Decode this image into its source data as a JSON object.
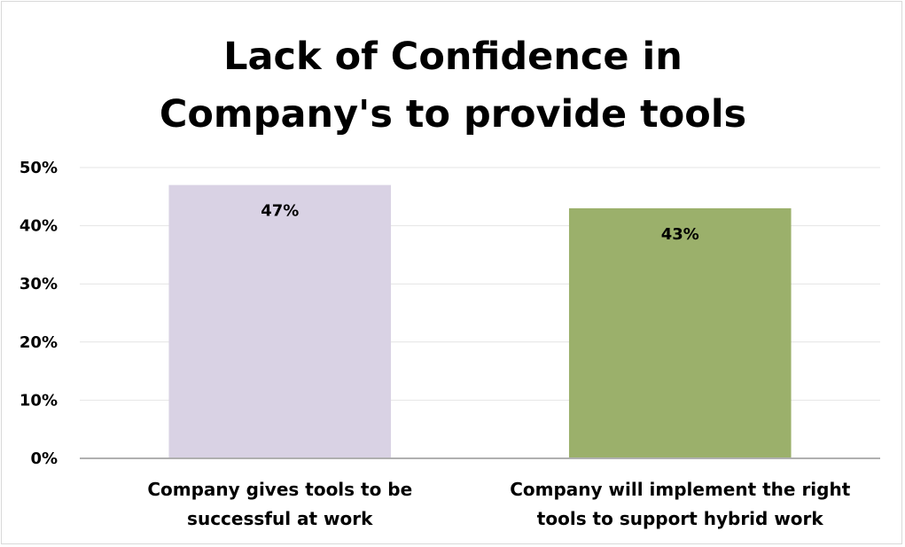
{
  "chart_data": {
    "type": "bar",
    "title_lines": [
      "Lack of Confidence in",
      "Company's to provide tools"
    ],
    "categories": [
      [
        "Company gives tools to be",
        "successful at work"
      ],
      [
        "Company will implement the right",
        "tools to support hybrid work"
      ]
    ],
    "values": [
      47,
      43
    ],
    "data_labels": [
      "47%",
      "43%"
    ],
    "bar_colors": [
      "#d9d2e4",
      "#9bb06b"
    ],
    "yticks": [
      "0%",
      "10%",
      "20%",
      "30%",
      "40%",
      "50%"
    ],
    "ylim": [
      0,
      50
    ],
    "grid": true,
    "legend": "none",
    "xlabel": "",
    "ylabel": ""
  }
}
